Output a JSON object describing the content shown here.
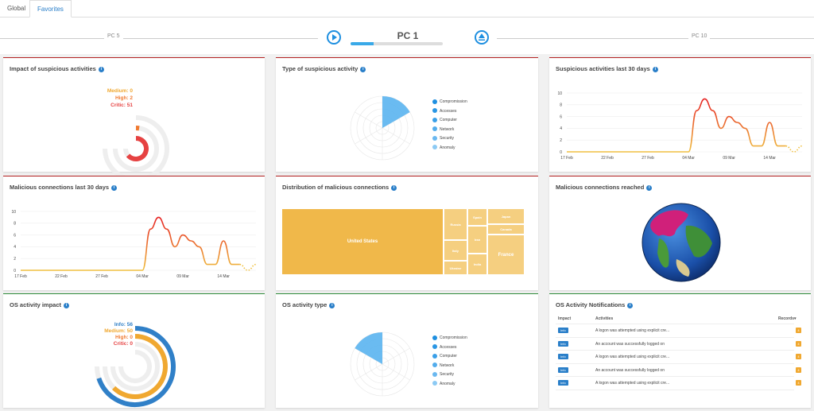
{
  "tabs": [
    {
      "label": "Global"
    },
    {
      "label": "Favorites"
    }
  ],
  "pcnav": {
    "left": "PC 5",
    "center": "PC 1",
    "right": "PC 10",
    "progress": 0.25
  },
  "cards": {
    "impact": {
      "title": "Impact of suspicious activities",
      "medium": "Medium: 0",
      "high": "High: 2",
      "critic": "Critic: 51"
    },
    "type": {
      "title": "Type of suspicious activity",
      "legend": [
        "Compromission",
        "Accesses",
        "Computer",
        "Network",
        "Security",
        "Anomaly"
      ]
    },
    "susp30": {
      "title": "Suspicious activities last 30 days"
    },
    "mal30": {
      "title": "Malicious connections last 30 days"
    },
    "dist": {
      "title": "Distribution of malicious connections",
      "us": "United States",
      "france": "France",
      "small": [
        "Russia",
        "Italy",
        "Ukraine",
        "Spain",
        "Iran",
        "India",
        "Japan",
        "Canada"
      ]
    },
    "reached": {
      "title": "Malicious connections reached"
    },
    "osimpact": {
      "title": "OS activity impact",
      "info": "Info: 56",
      "medium": "Medium: 50",
      "high": "High: 0",
      "critic": "Critic: 0"
    },
    "ostype": {
      "title": "OS activity type",
      "legend": [
        "Compromission",
        "Accesses",
        "Computer",
        "Network",
        "Security",
        "Anomaly"
      ]
    },
    "osnotif": {
      "title": "OS Activity Notifications",
      "headers": {
        "impact": "Impact",
        "activities": "Activities",
        "records": "Records"
      },
      "rows": [
        {
          "impact": "Info",
          "activity": "A logon was attempted using explicit cre...",
          "records": "4"
        },
        {
          "impact": "Info",
          "activity": "An account was successfully logged on",
          "records": "4"
        },
        {
          "impact": "Info",
          "activity": "A logon was attempted using explicit cre...",
          "records": "4"
        },
        {
          "impact": "Info",
          "activity": "An account was successfully logged on",
          "records": "4"
        },
        {
          "impact": "Info",
          "activity": "A logon was attempted using explicit cre...",
          "records": "4"
        }
      ]
    }
  },
  "chart_data": [
    {
      "type": "line",
      "title": "Suspicious activities last 30 days",
      "x": [
        "17 Feb",
        "18 Feb",
        "19 Feb",
        "20 Feb",
        "21 Feb",
        "22 Feb",
        "23 Feb",
        "24 Feb",
        "25 Feb",
        "26 Feb",
        "27 Feb",
        "28 Feb",
        "01 Mar",
        "02 Mar",
        "03 Mar",
        "04 Mar",
        "05 Mar",
        "06 Mar",
        "07 Mar",
        "08 Mar",
        "09 Mar",
        "10 Mar",
        "11 Mar",
        "12 Mar",
        "13 Mar",
        "14 Mar",
        "15 Mar",
        "16 Mar",
        "17 Mar",
        "18 Mar"
      ],
      "xticks": [
        "17 Feb",
        "22 Feb",
        "27 Feb",
        "04 Mar",
        "09 Mar",
        "14 Mar"
      ],
      "values": [
        0,
        0,
        0,
        0,
        0,
        0,
        0,
        0,
        0,
        0,
        0,
        0,
        0,
        0,
        0,
        0,
        7,
        9,
        7,
        4,
        6,
        5,
        4,
        1,
        1,
        5,
        1,
        1,
        0,
        1
      ],
      "yticks": [
        0,
        2,
        4,
        6,
        8,
        10
      ],
      "ylim": [
        0,
        10
      ]
    },
    {
      "type": "line",
      "title": "Malicious connections last 30 days",
      "x": [
        "17 Feb",
        "18 Feb",
        "19 Feb",
        "20 Feb",
        "21 Feb",
        "22 Feb",
        "23 Feb",
        "24 Feb",
        "25 Feb",
        "26 Feb",
        "27 Feb",
        "28 Feb",
        "01 Mar",
        "02 Mar",
        "03 Mar",
        "04 Mar",
        "05 Mar",
        "06 Mar",
        "07 Mar",
        "08 Mar",
        "09 Mar",
        "10 Mar",
        "11 Mar",
        "12 Mar",
        "13 Mar",
        "14 Mar",
        "15 Mar",
        "16 Mar",
        "17 Mar",
        "18 Mar"
      ],
      "xticks": [
        "17 Feb",
        "22 Feb",
        "27 Feb",
        "04 Mar",
        "09 Mar",
        "14 Mar"
      ],
      "values": [
        0,
        0,
        0,
        0,
        0,
        0,
        0,
        0,
        0,
        0,
        0,
        0,
        0,
        0,
        0,
        0,
        7,
        9,
        7,
        4,
        6,
        5,
        4,
        1,
        1,
        5,
        1,
        1,
        0,
        1
      ],
      "yticks": [
        0,
        2,
        4,
        6,
        8,
        10
      ],
      "ylim": [
        0,
        10
      ]
    },
    {
      "type": "pie",
      "title": "Type of suspicious activity",
      "categories": [
        "Compromission",
        "Accesses",
        "Computer",
        "Network",
        "Security",
        "Anomaly"
      ],
      "values": [
        1,
        0,
        0,
        0,
        0,
        0
      ]
    },
    {
      "type": "pie",
      "title": "OS activity type",
      "categories": [
        "Compromission",
        "Accesses",
        "Computer",
        "Network",
        "Security",
        "Anomaly"
      ],
      "values": [
        0,
        0,
        0,
        0,
        0,
        1
      ]
    },
    {
      "type": "bar",
      "title": "Impact of suspicious activities",
      "categories": [
        "Medium",
        "High",
        "Critic"
      ],
      "values": [
        0,
        2,
        51
      ]
    },
    {
      "type": "bar",
      "title": "OS activity impact",
      "categories": [
        "Info",
        "Medium",
        "High",
        "Critic"
      ],
      "values": [
        56,
        50,
        0,
        0
      ]
    }
  ],
  "colors": {
    "accent": "#2a7fc9",
    "critic": "#e64242",
    "high": "#f07a30",
    "medium": "#f0a830",
    "info": "#3080c8",
    "pie": "#5ab4f0",
    "line_start": "#f0c040",
    "line_end": "#e62020",
    "treemap": "#f0b84a",
    "treemap_light": "#f5cf80"
  }
}
